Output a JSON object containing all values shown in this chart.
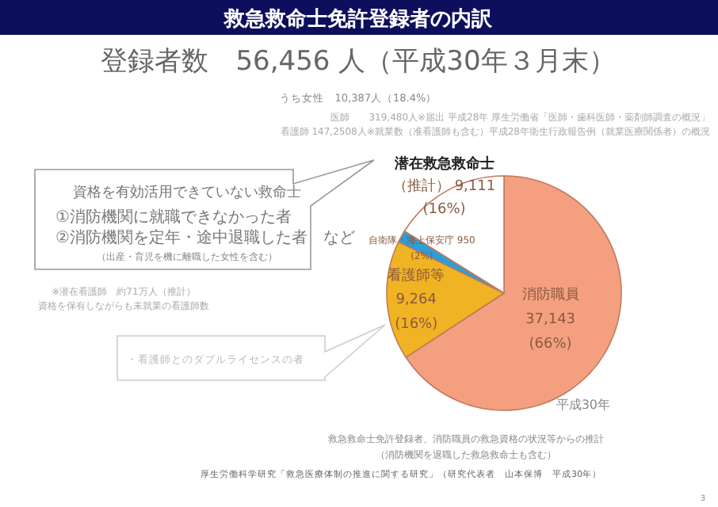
{
  "chart_data": {
    "type": "pie",
    "title": "救急救命士免許登録者の内訳",
    "subtitle": "登録者数　56,456 人（平成30年３月末）",
    "categories": [
      "消防職員",
      "看護師等",
      "自衛隊・海上保安庁",
      "潜在救急救命士"
    ],
    "values": [
      37143,
      9264,
      950,
      9111
    ],
    "colors": [
      "#f4a080",
      "#f0b323",
      "#2a9fd8",
      "#ffffff"
    ],
    "value_labels": [
      "37,143\n(66%)",
      "9,264\n(16%)",
      "950\n(2%)",
      "（推計） 9,111\n(16%)"
    ],
    "legend": false,
    "annotations": [
      "うち女性　10,387人（18.4%）",
      "医師　　319,480人※届出 平成28年 厚生労働省「医師・歯科医師・薬剤師調査の概況」",
      "看護師 147,2508人※就業数（准看護師も含む）平成28年衛生行政報告例（就業医療関係者）の概況",
      "資格を有効活用できていない救命士",
      "①消防機関に就職できなかった者",
      "②消防機関を定年・途中退職した者　など",
      "（出産・育児を機に離職した女性を含む）",
      "※潜在看護師　約71万人（推計）",
      "資格を保有しながらも未就業の看護師数",
      "・看護師とのダブルライセンスの者",
      "平成30年",
      "救急救命士免許登録者、消防職員の救急資格の状況等からの推計",
      "（消防機関を退職した救急救命士も含む）",
      "厚生労働科学研究「救急医療体制の推進に関する研究」（研究代表者　山本保博　平成30年）",
      "3"
    ]
  }
}
